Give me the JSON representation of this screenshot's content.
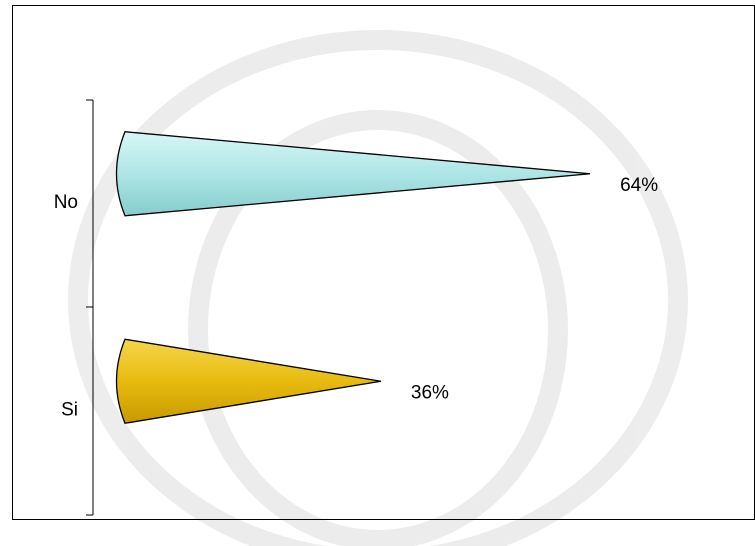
{
  "chart_data": {
    "type": "cone-bar",
    "categories": [
      "No",
      "Si"
    ],
    "values": [
      64,
      36
    ],
    "value_labels": [
      "64%",
      "36%"
    ],
    "colors": [
      "#aee6e6",
      "#e8bb10"
    ]
  }
}
